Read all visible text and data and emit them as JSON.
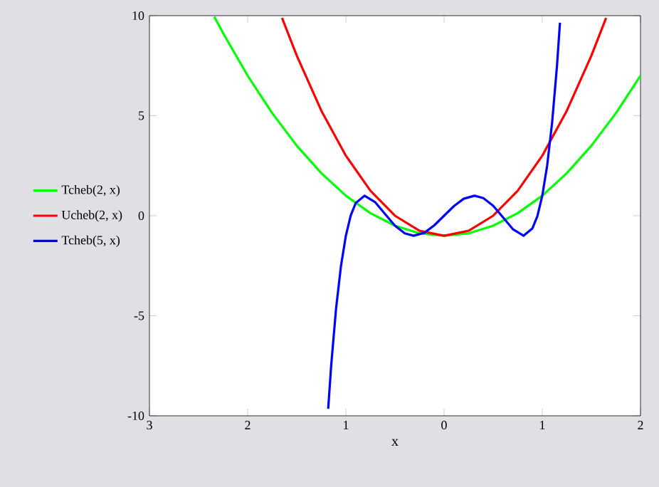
{
  "chart_data": {
    "type": "line",
    "xlabel": "x",
    "xlim": [
      -3,
      2
    ],
    "ylim": [
      -10,
      10
    ],
    "xticks": [
      {
        "value": -3,
        "label": "3"
      },
      {
        "value": -2,
        "label": "2"
      },
      {
        "value": -1,
        "label": "1"
      },
      0,
      1,
      2
    ],
    "yticks": [
      -10,
      -5,
      0,
      5,
      10
    ],
    "legend": "left",
    "grid": false,
    "series": [
      {
        "name": "Tcheb(2, x)",
        "color": "#00ff00",
        "x": [
          -2.34,
          -2.25,
          -2,
          -1.75,
          -1.5,
          -1.25,
          -1,
          -0.75,
          -0.5,
          -0.25,
          0,
          0.25,
          0.5,
          0.75,
          1,
          1.25,
          1.5,
          1.75,
          2
        ],
        "values": [
          9.95,
          9.13,
          7,
          5.13,
          3.5,
          2.13,
          1,
          0.13,
          -0.5,
          -0.88,
          -1,
          -0.88,
          -0.5,
          0.13,
          1,
          2.13,
          3.5,
          5.13,
          7
        ]
      },
      {
        "name": "Ucheb(2, x)",
        "color": "#ff0000",
        "x": [
          -1.65,
          -1.5,
          -1.25,
          -1,
          -0.75,
          -0.5,
          -0.25,
          0,
          0.25,
          0.5,
          0.75,
          1,
          1.25,
          1.5,
          1.65
        ],
        "values": [
          9.89,
          8,
          5.25,
          3,
          1.25,
          0,
          -0.75,
          -1,
          -0.75,
          0,
          1.25,
          3,
          5.25,
          8,
          9.89
        ]
      },
      {
        "name": "Tcheb(5, x)",
        "color": "#0000ff",
        "x": [
          -1.18,
          -1.15,
          -1.1,
          -1.05,
          -1,
          -0.95,
          -0.9,
          -0.81,
          -0.7,
          -0.6,
          -0.5,
          -0.4,
          -0.31,
          -0.2,
          -0.1,
          0,
          0.1,
          0.2,
          0.31,
          0.4,
          0.5,
          0.6,
          0.7,
          0.81,
          0.9,
          0.95,
          1,
          1.05,
          1.1,
          1.15,
          1.18
        ],
        "values": [
          -9.65,
          -7.51,
          -4.65,
          -2.52,
          -1,
          0.02,
          0.63,
          1,
          0.67,
          0.08,
          -0.5,
          -0.88,
          -1,
          -0.85,
          -0.48,
          0,
          0.48,
          0.85,
          1,
          0.88,
          0.5,
          -0.08,
          -0.67,
          -1,
          -0.63,
          -0.02,
          1,
          2.52,
          4.65,
          7.51,
          9.65
        ]
      }
    ]
  }
}
